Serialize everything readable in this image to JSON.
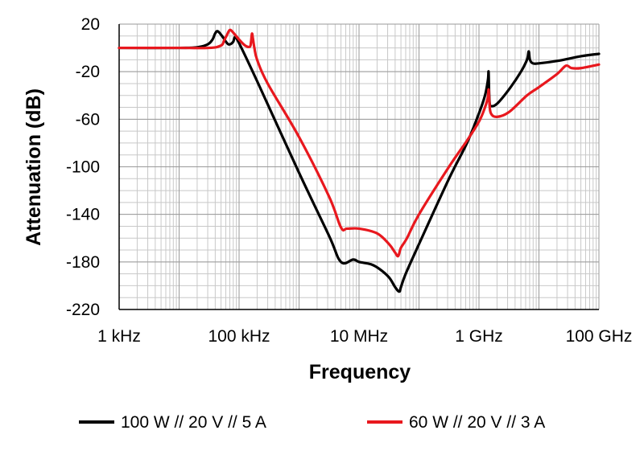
{
  "chart_data": {
    "type": "line",
    "xlabel": "Frequency",
    "ylabel": "Attenuation (dB)",
    "x_scale": "log",
    "xlim": [
      1000,
      100000000000
    ],
    "ylim": [
      -220,
      20
    ],
    "grid": true,
    "legend_position": "bottom",
    "x_ticks": [
      {
        "value": 1000,
        "label": "1 kHz"
      },
      {
        "value": 100000,
        "label": "100 kHz"
      },
      {
        "value": 10000000,
        "label": "10 MHz"
      },
      {
        "value": 1000000000,
        "label": "1 GHz"
      },
      {
        "value": 100000000000,
        "label": "100 GHz"
      }
    ],
    "y_ticks": [
      {
        "value": 20,
        "label": "20"
      },
      {
        "value": -20,
        "label": "-20"
      },
      {
        "value": -60,
        "label": "-60"
      },
      {
        "value": -100,
        "label": "-100"
      },
      {
        "value": -140,
        "label": "-140"
      },
      {
        "value": -180,
        "label": "-180"
      },
      {
        "value": -220,
        "label": "-220"
      }
    ],
    "series": [
      {
        "name": "100 W // 20 V // 5 A",
        "color": "#000000",
        "x": [
          1000,
          10000,
          20000,
          30000,
          36000,
          39800,
          44000,
          52000,
          63000,
          70000,
          79400,
          86000,
          100000,
          200000,
          1000000,
          3160000,
          5000000,
          8000000,
          10000000,
          15800000,
          22000000,
          31600000,
          39800000,
          46800000,
          50100000,
          60000000,
          100000000,
          316000000,
          631000000,
          1000000000,
          1260000000,
          1410000000,
          1445000000,
          1470000000,
          1510000000,
          1580000000,
          2000000000,
          3160000000,
          5010000000,
          6310000000,
          6760000000,
          7080000000,
          7940000000,
          10000000000,
          20000000000,
          50100000000,
          100000000000
        ],
        "y": [
          0,
          0,
          0.5,
          3,
          7,
          12,
          14,
          10,
          4,
          3,
          5,
          9,
          4,
          -28,
          -105,
          -158,
          -180,
          -178,
          -180,
          -182,
          -186,
          -193,
          -201,
          -205,
          -201,
          -190,
          -165,
          -110,
          -80,
          -55,
          -40,
          -27,
          -20,
          -35,
          -47,
          -49,
          -47,
          -35,
          -20,
          -10,
          -3,
          -10,
          -13,
          -13,
          -11,
          -7,
          -5
        ]
      },
      {
        "name": "60 W // 20 V // 3 A",
        "color": "#e8181e",
        "x": [
          1000,
          10000,
          31600,
          50000,
          56000,
          60000,
          63000,
          70000,
          79400,
          100000,
          126000,
          151000,
          158000,
          164000,
          170000,
          180000,
          200000,
          300000,
          1000000,
          3160000,
          5000000,
          6310000,
          10000000,
          20000000,
          31600000,
          39800000,
          45000000,
          50100000,
          63000000,
          100000000,
          316000000,
          631000000,
          1000000000,
          1260000000,
          1400000000,
          1450000000,
          1490000000,
          1580000000,
          2000000000,
          3160000000,
          6310000000,
          10000000000,
          20000000000,
          28200000000,
          35000000000,
          50100000000,
          100000000000
        ],
        "y": [
          0,
          0,
          0,
          2,
          6,
          9,
          11,
          15,
          13,
          7,
          2,
          1,
          5,
          12,
          8,
          0,
          -10,
          -30,
          -75,
          -125,
          -151,
          -152,
          -152,
          -156,
          -165,
          -172,
          -175,
          -168,
          -160,
          -140,
          -100,
          -78,
          -62,
          -50,
          -42,
          -35,
          -45,
          -55,
          -58,
          -54,
          -40,
          -33,
          -22,
          -15,
          -17,
          -17,
          -14
        ]
      }
    ]
  }
}
